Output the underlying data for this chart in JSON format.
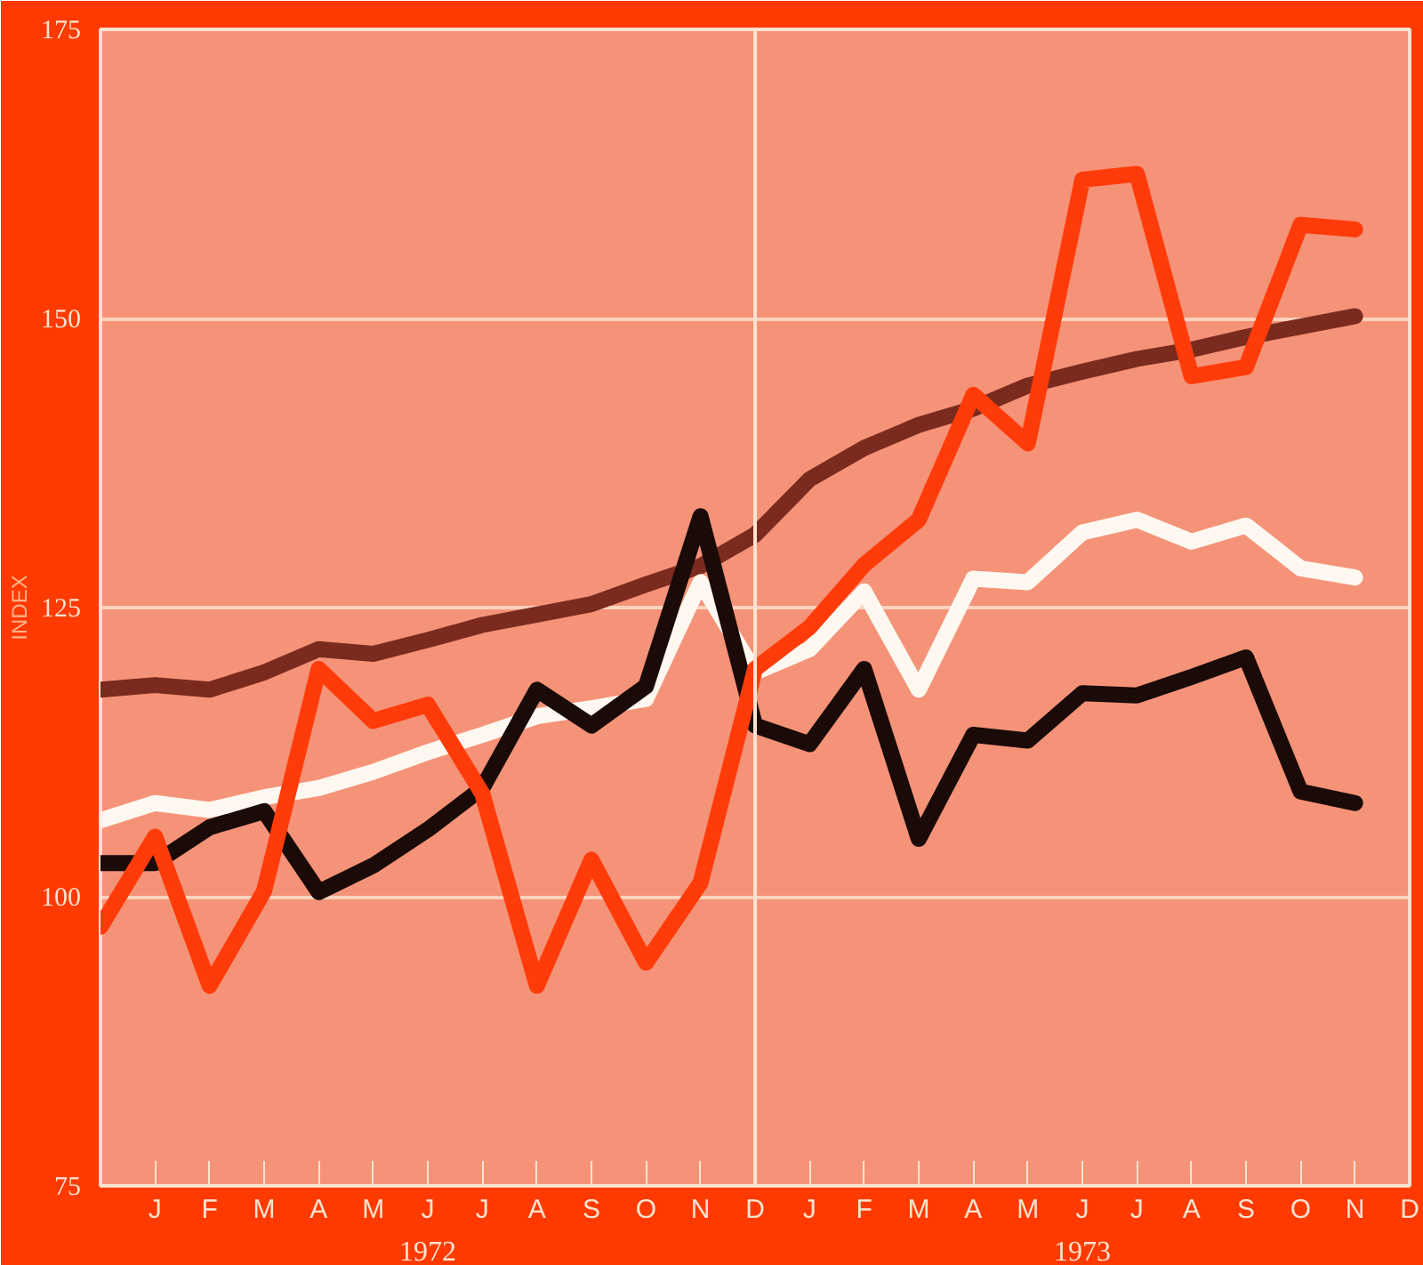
{
  "chart_data": {
    "type": "line",
    "ylabel": "INDEX",
    "categories": [
      null,
      "J",
      "F",
      "M",
      "A",
      "M",
      "J",
      "J",
      "A",
      "S",
      "O",
      "N",
      "D",
      "J",
      "F",
      "M",
      "A",
      "M",
      "J",
      "J",
      "A",
      "S",
      "O",
      "N",
      "D"
    ],
    "ylim": [
      75,
      175
    ],
    "yticks": [
      75,
      100,
      125,
      150,
      175
    ],
    "grid": "y",
    "ref_lines": [
      {
        "axis": "x",
        "value": "D",
        "color": "#fbe3cf"
      }
    ],
    "annotations": [
      "1972",
      "1973"
    ],
    "series": [
      {
        "color": "#7b2b1e",
        "values": [
          117.9,
          118.3,
          117.9,
          119.4,
          121.4,
          121.0,
          122.2,
          123.5,
          124.4,
          125.3,
          127.0,
          128.6,
          131.3,
          136.1,
          138.8,
          140.8,
          142.2,
          144.2,
          145.4,
          146.5,
          147.3,
          148.4,
          149.3,
          150.2,
          null
        ]
      },
      {
        "color": "#fff8f0",
        "values": [
          106.6,
          108.1,
          107.5,
          108.6,
          109.4,
          110.8,
          112.5,
          114.0,
          115.6,
          116.3,
          117.1,
          127.2,
          119.4,
          121.4,
          126.4,
          117.9,
          127.5,
          127.2,
          131.5,
          132.6,
          130.7,
          132.1,
          128.4,
          127.6,
          null
        ]
      },
      {
        "color": "#1a0a08",
        "values": [
          102.9,
          102.9,
          106.0,
          107.4,
          100.4,
          102.7,
          105.8,
          109.4,
          117.9,
          114.8,
          118.2,
          132.9,
          114.8,
          113.2,
          119.7,
          105.0,
          114.0,
          113.5,
          117.6,
          117.4,
          119.0,
          120.7,
          109.1,
          108.1,
          null
        ]
      },
      {
        "color": "#ff3b0a",
        "values": [
          97.4,
          105.2,
          92.3,
          100.5,
          119.7,
          115.2,
          116.6,
          108.9,
          92.3,
          103.2,
          94.3,
          101.2,
          119.7,
          123.3,
          128.7,
          132.6,
          143.4,
          139.2,
          162.0,
          162.5,
          145.0,
          145.8,
          158.1,
          157.7,
          null
        ]
      }
    ]
  }
}
